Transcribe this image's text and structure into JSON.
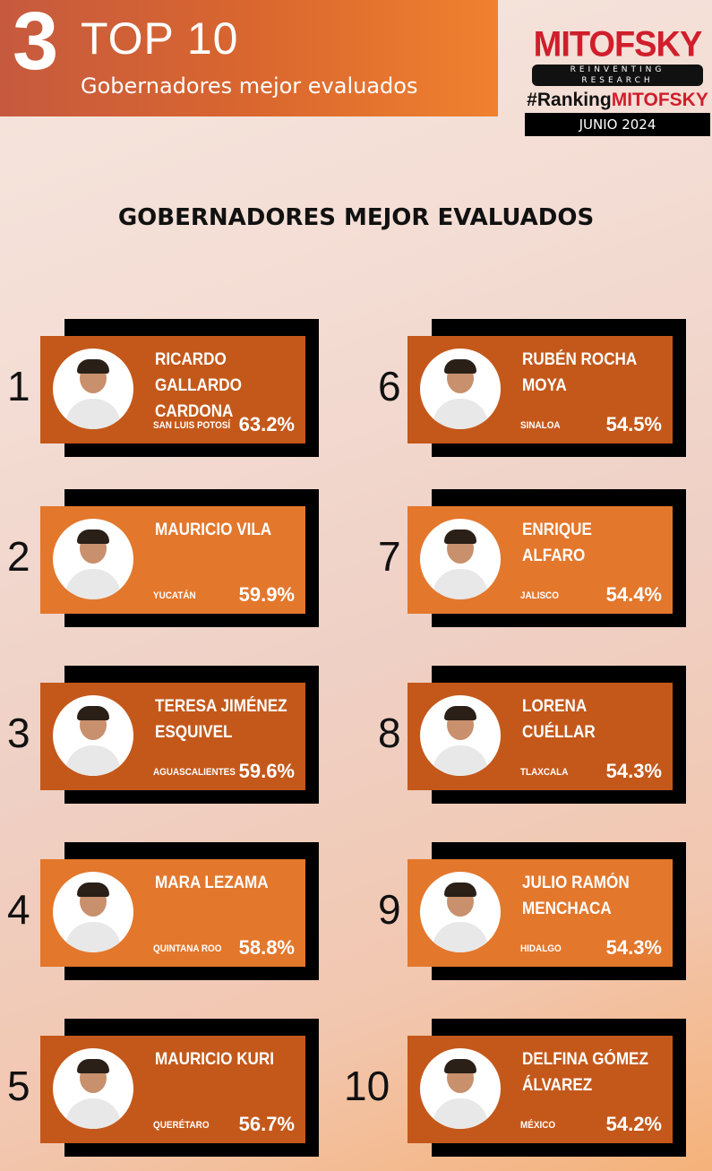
{
  "header": {
    "section_number": "3",
    "title": "TOP 10",
    "subtitle": "Gobernadores mejor evaluados"
  },
  "logo": {
    "name": "MITOFSKY",
    "tagline": "REINVENTING RESEARCH",
    "hashtag_prefix": "#Ranking",
    "hashtag_brand": "MITOFSKY",
    "date": "JUNIO 2024"
  },
  "main_title": "GOBERNADORES MEJOR EVALUADOS",
  "colors": {
    "card_dark": "#c4581a",
    "card_light": "#e3772c",
    "brand_red": "#d01e2c"
  },
  "governors": [
    {
      "rank": "1",
      "name": "RICARDO GALLARDO\nCARDONA",
      "state": "SAN LUIS POTOSÍ",
      "score": "63.2%"
    },
    {
      "rank": "2",
      "name": "MAURICIO VILA",
      "state": "YUCATÁN",
      "score": "59.9%"
    },
    {
      "rank": "3",
      "name": "TERESA JIMÉNEZ\nESQUIVEL",
      "state": "AGUASCALIENTES",
      "score": "59.6%"
    },
    {
      "rank": "4",
      "name": "MARA LEZAMA",
      "state": "QUINTANA ROO",
      "score": "58.8%"
    },
    {
      "rank": "5",
      "name": "MAURICIO KURI",
      "state": "QUERÉTARO",
      "score": "56.7%"
    },
    {
      "rank": "6",
      "name": "RUBÉN ROCHA MOYA",
      "state": "SINALOA",
      "score": "54.5%"
    },
    {
      "rank": "7",
      "name": "ENRIQUE ALFARO",
      "state": "JALISCO",
      "score": "54.4%"
    },
    {
      "rank": "8",
      "name": "LORENA CUÉLLAR",
      "state": "TLAXCALA",
      "score": "54.3%"
    },
    {
      "rank": "9",
      "name": "JULIO RAMÓN\nMENCHACA",
      "state": "HIDALGO",
      "score": "54.3%"
    },
    {
      "rank": "10",
      "name": "DELFINA GÓMEZ\nÁLVAREZ",
      "state": "MÉXICO",
      "score": "54.2%"
    }
  ]
}
